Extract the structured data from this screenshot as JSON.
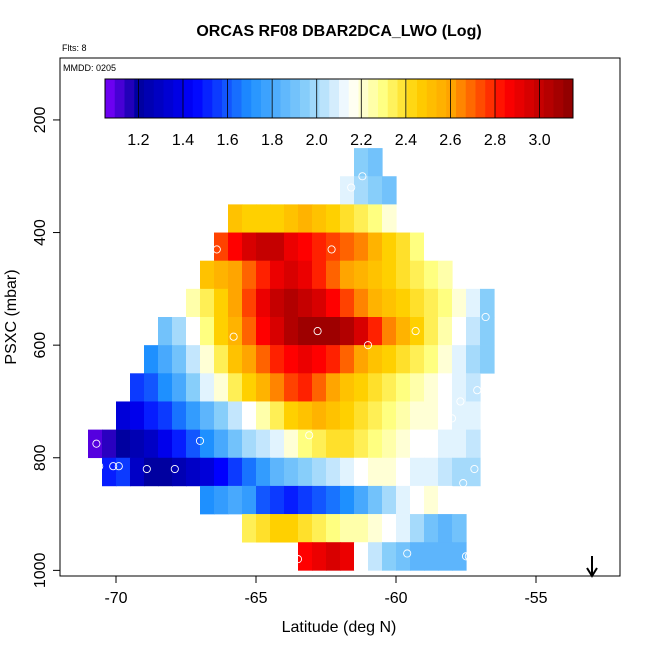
{
  "chart_data": {
    "type": "heatmap",
    "title": "ORCAS RF08 DBAR2DCA_LWO (Log)",
    "flights_note": "Flts: 8",
    "date_note": "MMDD: 0205",
    "xlabel": "Latitude (deg N)",
    "ylabel": "PSXC (mbar)",
    "xlim": [
      -72,
      -52
    ],
    "ylim": [
      1010,
      90
    ],
    "x_ticks": [
      -70,
      -65,
      -60,
      -55
    ],
    "x_tick_labels": [
      "-70",
      "-65",
      "-60",
      "-55"
    ],
    "y_ticks": [
      200,
      400,
      600,
      800,
      1000
    ],
    "y_tick_labels": [
      "200",
      "400",
      "600",
      "800",
      "1000"
    ],
    "colorbar": {
      "range": [
        1.05,
        3.15
      ],
      "ticks": [
        1.2,
        1.4,
        1.6,
        1.8,
        2.0,
        2.2,
        2.4,
        2.6,
        2.8,
        3.0
      ],
      "tick_labels": [
        "1.2",
        "1.4",
        "1.6",
        "1.8",
        "2.0",
        "2.2",
        "2.4",
        "2.6",
        "2.8",
        "3.0"
      ],
      "colors": [
        "#7f00ff",
        "#0000a0",
        "#0000ff",
        "#1e90ff",
        "#87cefa",
        "#ffffff",
        "#ffff80",
        "#ffd000",
        "#ffa500",
        "#ff0000",
        "#8b0000"
      ],
      "color_stops": [
        1.05,
        1.2,
        1.45,
        1.7,
        1.95,
        2.15,
        2.3,
        2.45,
        2.6,
        2.85,
        3.15
      ]
    },
    "bin_width_deg": 0.5,
    "layers": [
      {
        "p": 275,
        "lat": [
          -61.5,
          -61.0
        ],
        "values": [
          1.95,
          1.9
        ]
      },
      {
        "p": 325,
        "lat": [
          -63.0,
          -60.5
        ],
        "values": [
          2.15,
          2.15,
          2.1,
          2.0,
          1.95,
          1.9
        ]
      },
      {
        "p": 375,
        "lat": [
          -66.0,
          -60.5
        ],
        "values": [
          2.5,
          2.45,
          2.45,
          2.45,
          2.5,
          2.55,
          2.5,
          2.45,
          2.4,
          2.35,
          2.3,
          2.2
        ]
      },
      {
        "p": 425,
        "lat": [
          -66.5,
          -59.0
        ],
        "values": [
          2.75,
          2.85,
          2.95,
          3.0,
          3.0,
          2.9,
          2.85,
          2.8,
          2.75,
          2.7,
          2.65,
          2.55,
          2.45,
          2.4,
          2.3,
          2.15
        ]
      },
      {
        "p": 475,
        "lat": [
          -67.0,
          -58.0
        ],
        "values": [
          2.5,
          2.55,
          2.6,
          2.7,
          2.8,
          2.9,
          2.95,
          2.9,
          2.8,
          2.7,
          2.6,
          2.55,
          2.5,
          2.45,
          2.4,
          2.35,
          2.3,
          2.25
        ]
      },
      {
        "p": 525,
        "lat": [
          -67.5,
          -56.5
        ],
        "values": [
          2.25,
          2.35,
          2.45,
          2.6,
          2.75,
          2.9,
          3.0,
          3.05,
          3.0,
          2.95,
          2.85,
          2.75,
          2.65,
          2.55,
          2.5,
          2.45,
          2.4,
          2.35,
          2.3,
          2.2,
          2.1,
          1.95
        ]
      },
      {
        "p": 575,
        "lat": [
          -68.5,
          -56.5
        ],
        "values": [
          1.9,
          2.0,
          2.15,
          2.3,
          2.45,
          2.55,
          2.7,
          2.85,
          2.95,
          3.05,
          3.1,
          3.1,
          3.1,
          3.05,
          2.95,
          2.8,
          2.65,
          2.55,
          2.45,
          2.35,
          2.25,
          2.15,
          2.05,
          1.95
        ]
      },
      {
        "p": 625,
        "lat": [
          -69.0,
          -56.5
        ],
        "values": [
          1.7,
          1.8,
          1.9,
          2.05,
          2.2,
          2.35,
          2.5,
          2.6,
          2.7,
          2.8,
          2.85,
          2.9,
          2.85,
          2.8,
          2.7,
          2.6,
          2.5,
          2.45,
          2.4,
          2.35,
          2.3,
          2.2,
          2.1,
          2.0,
          1.95
        ]
      },
      {
        "p": 675,
        "lat": [
          -69.5,
          -57.0
        ],
        "values": [
          1.55,
          1.6,
          1.7,
          1.8,
          1.95,
          2.1,
          2.2,
          2.35,
          2.45,
          2.55,
          2.65,
          2.75,
          2.8,
          2.7,
          2.6,
          2.5,
          2.45,
          2.4,
          2.35,
          2.3,
          2.25,
          2.2,
          2.15,
          2.1,
          2.05
        ]
      },
      {
        "p": 725,
        "lat": [
          -70.0,
          -57.0
        ],
        "values": [
          1.35,
          1.4,
          1.5,
          1.55,
          1.65,
          1.75,
          1.85,
          1.95,
          2.05,
          2.15,
          2.25,
          2.35,
          2.45,
          2.5,
          2.55,
          2.5,
          2.45,
          2.4,
          2.35,
          2.3,
          2.25,
          2.2,
          2.2,
          2.15,
          2.1,
          2.1
        ]
      },
      {
        "p": 775,
        "lat": [
          -71.0,
          -57.0
        ],
        "values": [
          1.1,
          1.15,
          1.2,
          1.25,
          1.3,
          1.4,
          1.5,
          1.6,
          1.7,
          1.8,
          1.9,
          2.0,
          2.05,
          2.1,
          2.2,
          2.3,
          2.35,
          2.4,
          2.4,
          2.35,
          2.3,
          2.25,
          2.2,
          2.15,
          2.15,
          2.1,
          2.1,
          2.05
        ]
      },
      {
        "p": 825,
        "lat": [
          -70.5,
          -57.0
        ],
        "values": [
          1.5,
          1.55,
          1.3,
          1.2,
          1.2,
          1.25,
          1.3,
          1.35,
          1.45,
          1.55,
          1.65,
          1.75,
          1.85,
          1.9,
          1.95,
          2.0,
          2.05,
          2.1,
          2.15,
          2.2,
          2.2,
          2.15,
          2.1,
          2.1,
          2.05,
          2.0,
          2.0
        ]
      },
      {
        "p": 875,
        "lat": [
          -67.0,
          -58.0
        ],
        "values": [
          1.7,
          1.75,
          1.8,
          1.75,
          1.6,
          1.55,
          1.5,
          1.55,
          1.6,
          1.65,
          1.7,
          1.8,
          1.9,
          2.0,
          2.1,
          2.15,
          2.2,
          2.15
        ]
      },
      {
        "p": 925,
        "lat": [
          -65.5,
          -57.5
        ],
        "values": [
          2.35,
          2.4,
          2.45,
          2.45,
          2.4,
          2.35,
          2.3,
          2.25,
          2.25,
          2.2,
          2.15,
          2.1,
          2.0,
          1.9,
          1.85,
          1.9
        ]
      },
      {
        "p": 975,
        "lat": [
          -63.5,
          -57.5
        ],
        "values": [
          2.85,
          2.9,
          2.95,
          2.9,
          2.15,
          2.05,
          1.95,
          1.9,
          1.85,
          1.85,
          1.85,
          1.85
        ]
      }
    ],
    "obs_points": [
      {
        "lat": -61.2,
        "p": 300
      },
      {
        "lat": -61.6,
        "p": 320
      },
      {
        "lat": -62.3,
        "p": 430
      },
      {
        "lat": -66.4,
        "p": 430
      },
      {
        "lat": -62.8,
        "p": 575
      },
      {
        "lat": -61.0,
        "p": 600
      },
      {
        "lat": -59.3,
        "p": 575
      },
      {
        "lat": -56.8,
        "p": 550
      },
      {
        "lat": -65.8,
        "p": 585
      },
      {
        "lat": -57.1,
        "p": 680
      },
      {
        "lat": -57.7,
        "p": 700
      },
      {
        "lat": -58.0,
        "p": 730
      },
      {
        "lat": -63.1,
        "p": 760
      },
      {
        "lat": -67.0,
        "p": 770
      },
      {
        "lat": -70.7,
        "p": 775
      },
      {
        "lat": -70.6,
        "p": 815
      },
      {
        "lat": -70.1,
        "p": 815
      },
      {
        "lat": -69.9,
        "p": 815
      },
      {
        "lat": -68.9,
        "p": 820
      },
      {
        "lat": -67.9,
        "p": 820
      },
      {
        "lat": -57.2,
        "p": 820
      },
      {
        "lat": -57.6,
        "p": 845
      },
      {
        "lat": -59.6,
        "p": 970
      },
      {
        "lat": -57.5,
        "p": 975
      },
      {
        "lat": -57.4,
        "p": 975
      },
      {
        "lat": -63.5,
        "p": 980
      },
      {
        "lat": -63.7,
        "p": 980
      }
    ],
    "arrow_marker_lat": -53.0
  }
}
